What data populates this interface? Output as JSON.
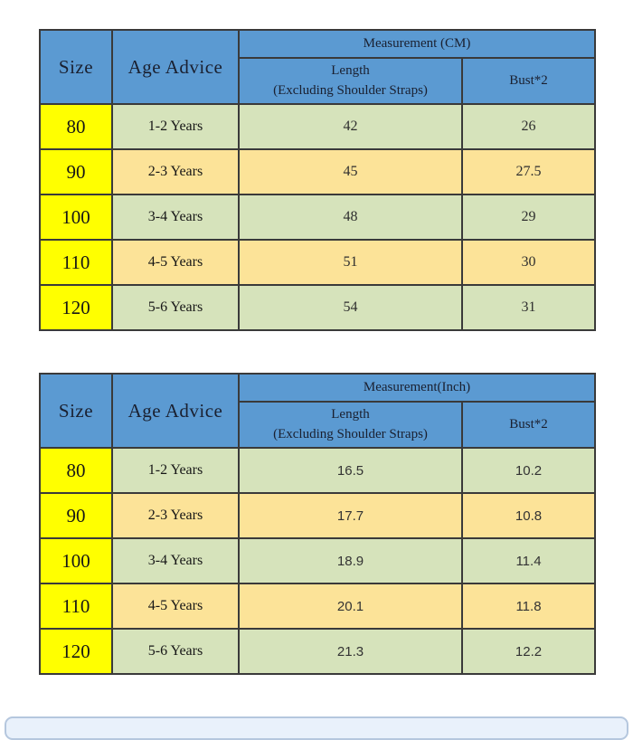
{
  "chart_data": [
    {
      "type": "table",
      "title": "Measurement (CM)",
      "headers": {
        "size": "Size",
        "age": "Age Advice",
        "group": "Measurement (CM)",
        "length_line1": "Length",
        "length_line2": "(Excluding Shoulder Straps)",
        "bust": "Bust*2"
      },
      "rows": [
        {
          "size": "80",
          "age": "1-2 Years",
          "length": "42",
          "bust": "26"
        },
        {
          "size": "90",
          "age": "2-3 Years",
          "length": "45",
          "bust": "27.5"
        },
        {
          "size": "100",
          "age": "3-4 Years",
          "length": "48",
          "bust": "29"
        },
        {
          "size": "110",
          "age": "4-5 Years",
          "length": "51",
          "bust": "30"
        },
        {
          "size": "120",
          "age": "5-6 Years",
          "length": "54",
          "bust": "31"
        }
      ]
    },
    {
      "type": "table",
      "title": "Measurement(Inch)",
      "headers": {
        "size": "Size",
        "age": "Age Advice",
        "group": "Measurement(Inch)",
        "length_line1": "Length",
        "length_line2": "(Excluding Shoulder Straps)",
        "bust": "Bust*2"
      },
      "rows": [
        {
          "size": "80",
          "age": "1-2 Years",
          "length": "16.5",
          "bust": "10.2"
        },
        {
          "size": "90",
          "age": "2-3 Years",
          "length": "17.7",
          "bust": "10.8"
        },
        {
          "size": "100",
          "age": "3-4 Years",
          "length": "18.9",
          "bust": "11.4"
        },
        {
          "size": "110",
          "age": "4-5 Years",
          "length": "20.1",
          "bust": "11.8"
        },
        {
          "size": "120",
          "age": "5-6 Years",
          "length": "21.3",
          "bust": "12.2"
        }
      ]
    }
  ],
  "colors": {
    "header_blue": "#5b9ad2",
    "size_yellow": "#ffff00",
    "row_green": "#d6e3bb",
    "row_tan": "#fce398",
    "border_dark": "#3a3a3a",
    "bottom_bar_fill": "#e9f1fb",
    "bottom_bar_border": "#b5c7de"
  }
}
